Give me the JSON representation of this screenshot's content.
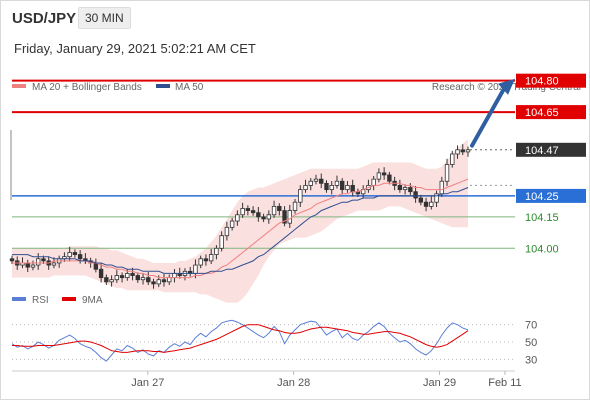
{
  "header": {
    "symbol": "USD/JPY",
    "timeframe": "30 MIN",
    "datetime": "Friday, January 29, 2021 5:02:21 AM CET"
  },
  "colors": {
    "resistance": "#e00000",
    "support": "#2a6fd6",
    "ma20": "#f08080",
    "ma50": "#2f4f8f",
    "bollinger_fill": "#fbe0e0",
    "candle": "#333333",
    "rsi": "#5b7fd6",
    "rsi_ma": "#e00000",
    "arrow": "#2f5fa0",
    "current": "#333333",
    "secondary_support": "#2e8b2e"
  },
  "chart_data": [
    {
      "type": "candlestick",
      "legend": [
        {
          "name": "MA 20 + Bollinger Bands",
          "color": "#f08080"
        },
        {
          "name": "MA 50",
          "color": "#2f4f8f"
        }
      ],
      "watermark": "Research © 2021 Trading Central",
      "ylim": [
        103.82,
        104.87
      ],
      "x_ticks": [
        {
          "label": "Jan 27",
          "pos": 0.27
        },
        {
          "label": "Jan 28",
          "pos": 0.56
        },
        {
          "label": "Jan 29",
          "pos": 0.85
        },
        {
          "label": "Feb 11",
          "pos": 0.98
        }
      ],
      "levels": [
        {
          "label": "104.80",
          "value": 104.8,
          "style": "resistance"
        },
        {
          "label": "104.65",
          "value": 104.65,
          "style": "resistance"
        },
        {
          "label": "104.47",
          "value": 104.47,
          "style": "current"
        },
        {
          "label": "104.25",
          "value": 104.25,
          "style": "support"
        },
        {
          "label": "104.15",
          "value": 104.15,
          "style": "secondary"
        },
        {
          "label": "104.00",
          "value": 104.0,
          "style": "secondary"
        }
      ],
      "close": [
        103.94,
        103.92,
        103.93,
        103.91,
        103.92,
        103.95,
        103.94,
        103.92,
        103.93,
        103.95,
        103.96,
        103.98,
        103.97,
        103.95,
        103.94,
        103.93,
        103.9,
        103.86,
        103.84,
        103.85,
        103.87,
        103.86,
        103.88,
        103.87,
        103.85,
        103.86,
        103.84,
        103.83,
        103.85,
        103.84,
        103.86,
        103.88,
        103.87,
        103.89,
        103.88,
        103.92,
        103.95,
        103.94,
        103.97,
        104.0,
        104.06,
        104.1,
        104.13,
        104.16,
        104.19,
        104.18,
        104.17,
        104.15,
        104.14,
        104.16,
        104.2,
        104.18,
        104.12,
        104.18,
        104.22,
        104.28,
        104.3,
        104.32,
        104.33,
        104.31,
        104.28,
        104.3,
        104.32,
        104.28,
        104.3,
        104.27,
        104.26,
        104.28,
        104.3,
        104.33,
        104.36,
        104.35,
        104.32,
        104.3,
        104.28,
        104.29,
        104.27,
        104.24,
        104.22,
        104.2,
        104.22,
        104.26,
        104.32,
        104.4,
        104.45,
        104.47,
        104.46,
        104.47
      ],
      "ma20": [
        103.93,
        103.93,
        103.93,
        103.93,
        103.93,
        103.93,
        103.93,
        103.93,
        103.94,
        103.94,
        103.94,
        103.94,
        103.94,
        103.94,
        103.94,
        103.93,
        103.93,
        103.92,
        103.91,
        103.91,
        103.9,
        103.9,
        103.89,
        103.89,
        103.88,
        103.88,
        103.87,
        103.87,
        103.86,
        103.86,
        103.86,
        103.86,
        103.86,
        103.86,
        103.86,
        103.87,
        103.87,
        103.88,
        103.88,
        103.89,
        103.91,
        103.92,
        103.94,
        103.96,
        103.98,
        104.0,
        104.02,
        104.04,
        104.06,
        104.08,
        104.1,
        104.12,
        104.13,
        104.14,
        104.16,
        104.17,
        104.18,
        104.19,
        104.21,
        104.22,
        104.23,
        104.24,
        104.25,
        104.26,
        104.26,
        104.27,
        104.27,
        104.28,
        104.29,
        104.3,
        104.3,
        104.31,
        104.31,
        104.31,
        104.31,
        104.3,
        104.3,
        104.29,
        104.29,
        104.28,
        104.28,
        104.28,
        104.28,
        104.29,
        104.3,
        104.31,
        104.32,
        104.33
      ],
      "bb_upper": [
        104.0,
        104.0,
        104.0,
        104.0,
        104.0,
        104.0,
        104.0,
        104.0,
        104.0,
        104.0,
        104.0,
        104.01,
        104.01,
        104.01,
        104.01,
        104.01,
        104.01,
        104.0,
        104.0,
        103.99,
        103.99,
        103.98,
        103.97,
        103.96,
        103.95,
        103.95,
        103.94,
        103.93,
        103.93,
        103.93,
        103.93,
        103.93,
        103.94,
        103.94,
        103.95,
        103.96,
        103.98,
        104.0,
        104.03,
        104.06,
        104.1,
        104.14,
        104.18,
        104.22,
        104.25,
        104.27,
        104.28,
        104.29,
        104.29,
        104.3,
        104.31,
        104.32,
        104.33,
        104.34,
        104.35,
        104.36,
        104.37,
        104.38,
        104.38,
        104.38,
        104.38,
        104.38,
        104.38,
        104.38,
        104.38,
        104.38,
        104.38,
        104.39,
        104.4,
        104.41,
        104.41,
        104.41,
        104.41,
        104.41,
        104.41,
        104.41,
        104.41,
        104.4,
        104.39,
        104.38,
        104.38,
        104.38,
        104.39,
        104.42,
        104.45,
        104.48,
        104.5,
        104.52
      ],
      "bb_lower": [
        103.86,
        103.86,
        103.86,
        103.86,
        103.86,
        103.86,
        103.86,
        103.86,
        103.87,
        103.87,
        103.87,
        103.87,
        103.87,
        103.87,
        103.87,
        103.86,
        103.85,
        103.84,
        103.83,
        103.82,
        103.81,
        103.81,
        103.8,
        103.8,
        103.8,
        103.8,
        103.8,
        103.8,
        103.8,
        103.79,
        103.79,
        103.79,
        103.79,
        103.79,
        103.79,
        103.79,
        103.78,
        103.78,
        103.77,
        103.76,
        103.75,
        103.74,
        103.74,
        103.74,
        103.76,
        103.79,
        103.83,
        103.87,
        103.92,
        103.96,
        103.99,
        104.02,
        104.03,
        104.04,
        104.05,
        104.05,
        104.05,
        104.06,
        104.07,
        104.08,
        104.1,
        104.12,
        104.14,
        104.15,
        104.16,
        104.17,
        104.18,
        104.18,
        104.18,
        104.18,
        104.18,
        104.19,
        104.2,
        104.2,
        104.2,
        104.19,
        104.18,
        104.17,
        104.16,
        104.15,
        104.14,
        104.13,
        104.12,
        104.11,
        104.1,
        104.1,
        104.1,
        104.1
      ],
      "ma50": [
        103.97,
        103.97,
        103.97,
        103.97,
        103.96,
        103.96,
        103.96,
        103.96,
        103.95,
        103.95,
        103.95,
        103.95,
        103.95,
        103.94,
        103.94,
        103.94,
        103.93,
        103.93,
        103.92,
        103.92,
        103.91,
        103.91,
        103.9,
        103.9,
        103.9,
        103.89,
        103.89,
        103.89,
        103.89,
        103.88,
        103.88,
        103.88,
        103.88,
        103.88,
        103.88,
        103.88,
        103.88,
        103.88,
        103.89,
        103.89,
        103.89,
        103.9,
        103.9,
        103.91,
        103.92,
        103.93,
        103.94,
        103.96,
        103.97,
        103.99,
        104.01,
        104.03,
        104.05,
        104.07,
        104.09,
        104.11,
        104.13,
        104.15,
        104.16,
        104.18,
        104.19,
        104.2,
        104.21,
        104.22,
        104.22,
        104.23,
        104.23,
        104.24,
        104.24,
        104.24,
        104.25,
        104.25,
        104.25,
        104.25,
        104.25,
        104.25,
        104.25,
        104.25,
        104.25,
        104.25,
        104.25,
        104.25,
        104.26,
        104.26,
        104.27,
        104.27,
        104.28,
        104.29
      ]
    },
    {
      "type": "line",
      "legend": [
        {
          "name": "RSI",
          "color": "#5b7fd6"
        },
        {
          "name": "9MA",
          "color": "#e00000"
        }
      ],
      "ylim": [
        20,
        80
      ],
      "y_ticks": [
        70,
        50,
        30
      ],
      "series": [
        {
          "name": "RSI",
          "values": [
            48,
            44,
            46,
            42,
            45,
            50,
            47,
            43,
            46,
            52,
            55,
            58,
            54,
            48,
            45,
            43,
            38,
            32,
            28,
            35,
            42,
            40,
            46,
            43,
            38,
            41,
            36,
            34,
            40,
            38,
            44,
            48,
            45,
            50,
            47,
            55,
            60,
            56,
            62,
            66,
            72,
            74,
            75,
            73,
            70,
            66,
            62,
            58,
            55,
            60,
            68,
            62,
            48,
            58,
            64,
            70,
            72,
            74,
            73,
            66,
            58,
            62,
            65,
            55,
            60,
            54,
            52,
            58,
            62,
            68,
            72,
            68,
            60,
            55,
            50,
            52,
            48,
            42,
            38,
            35,
            40,
            48,
            58,
            66,
            72,
            70,
            66,
            64
          ]
        },
        {
          "name": "9MA",
          "values": [
            46,
            46,
            45,
            45,
            45,
            46,
            46,
            46,
            46,
            47,
            48,
            49,
            50,
            51,
            51,
            50,
            48,
            46,
            43,
            40,
            39,
            38,
            38,
            39,
            40,
            40,
            40,
            39,
            39,
            38,
            39,
            40,
            41,
            42,
            43,
            45,
            47,
            49,
            51,
            53,
            56,
            59,
            62,
            65,
            68,
            70,
            70,
            70,
            68,
            66,
            64,
            63,
            61,
            60,
            60,
            61,
            63,
            65,
            66,
            67,
            67,
            66,
            65,
            64,
            63,
            61,
            60,
            59,
            59,
            60,
            61,
            62,
            62,
            61,
            60,
            58,
            56,
            53,
            50,
            47,
            45,
            44,
            45,
            47,
            51,
            55,
            59,
            63
          ]
        }
      ]
    }
  ]
}
